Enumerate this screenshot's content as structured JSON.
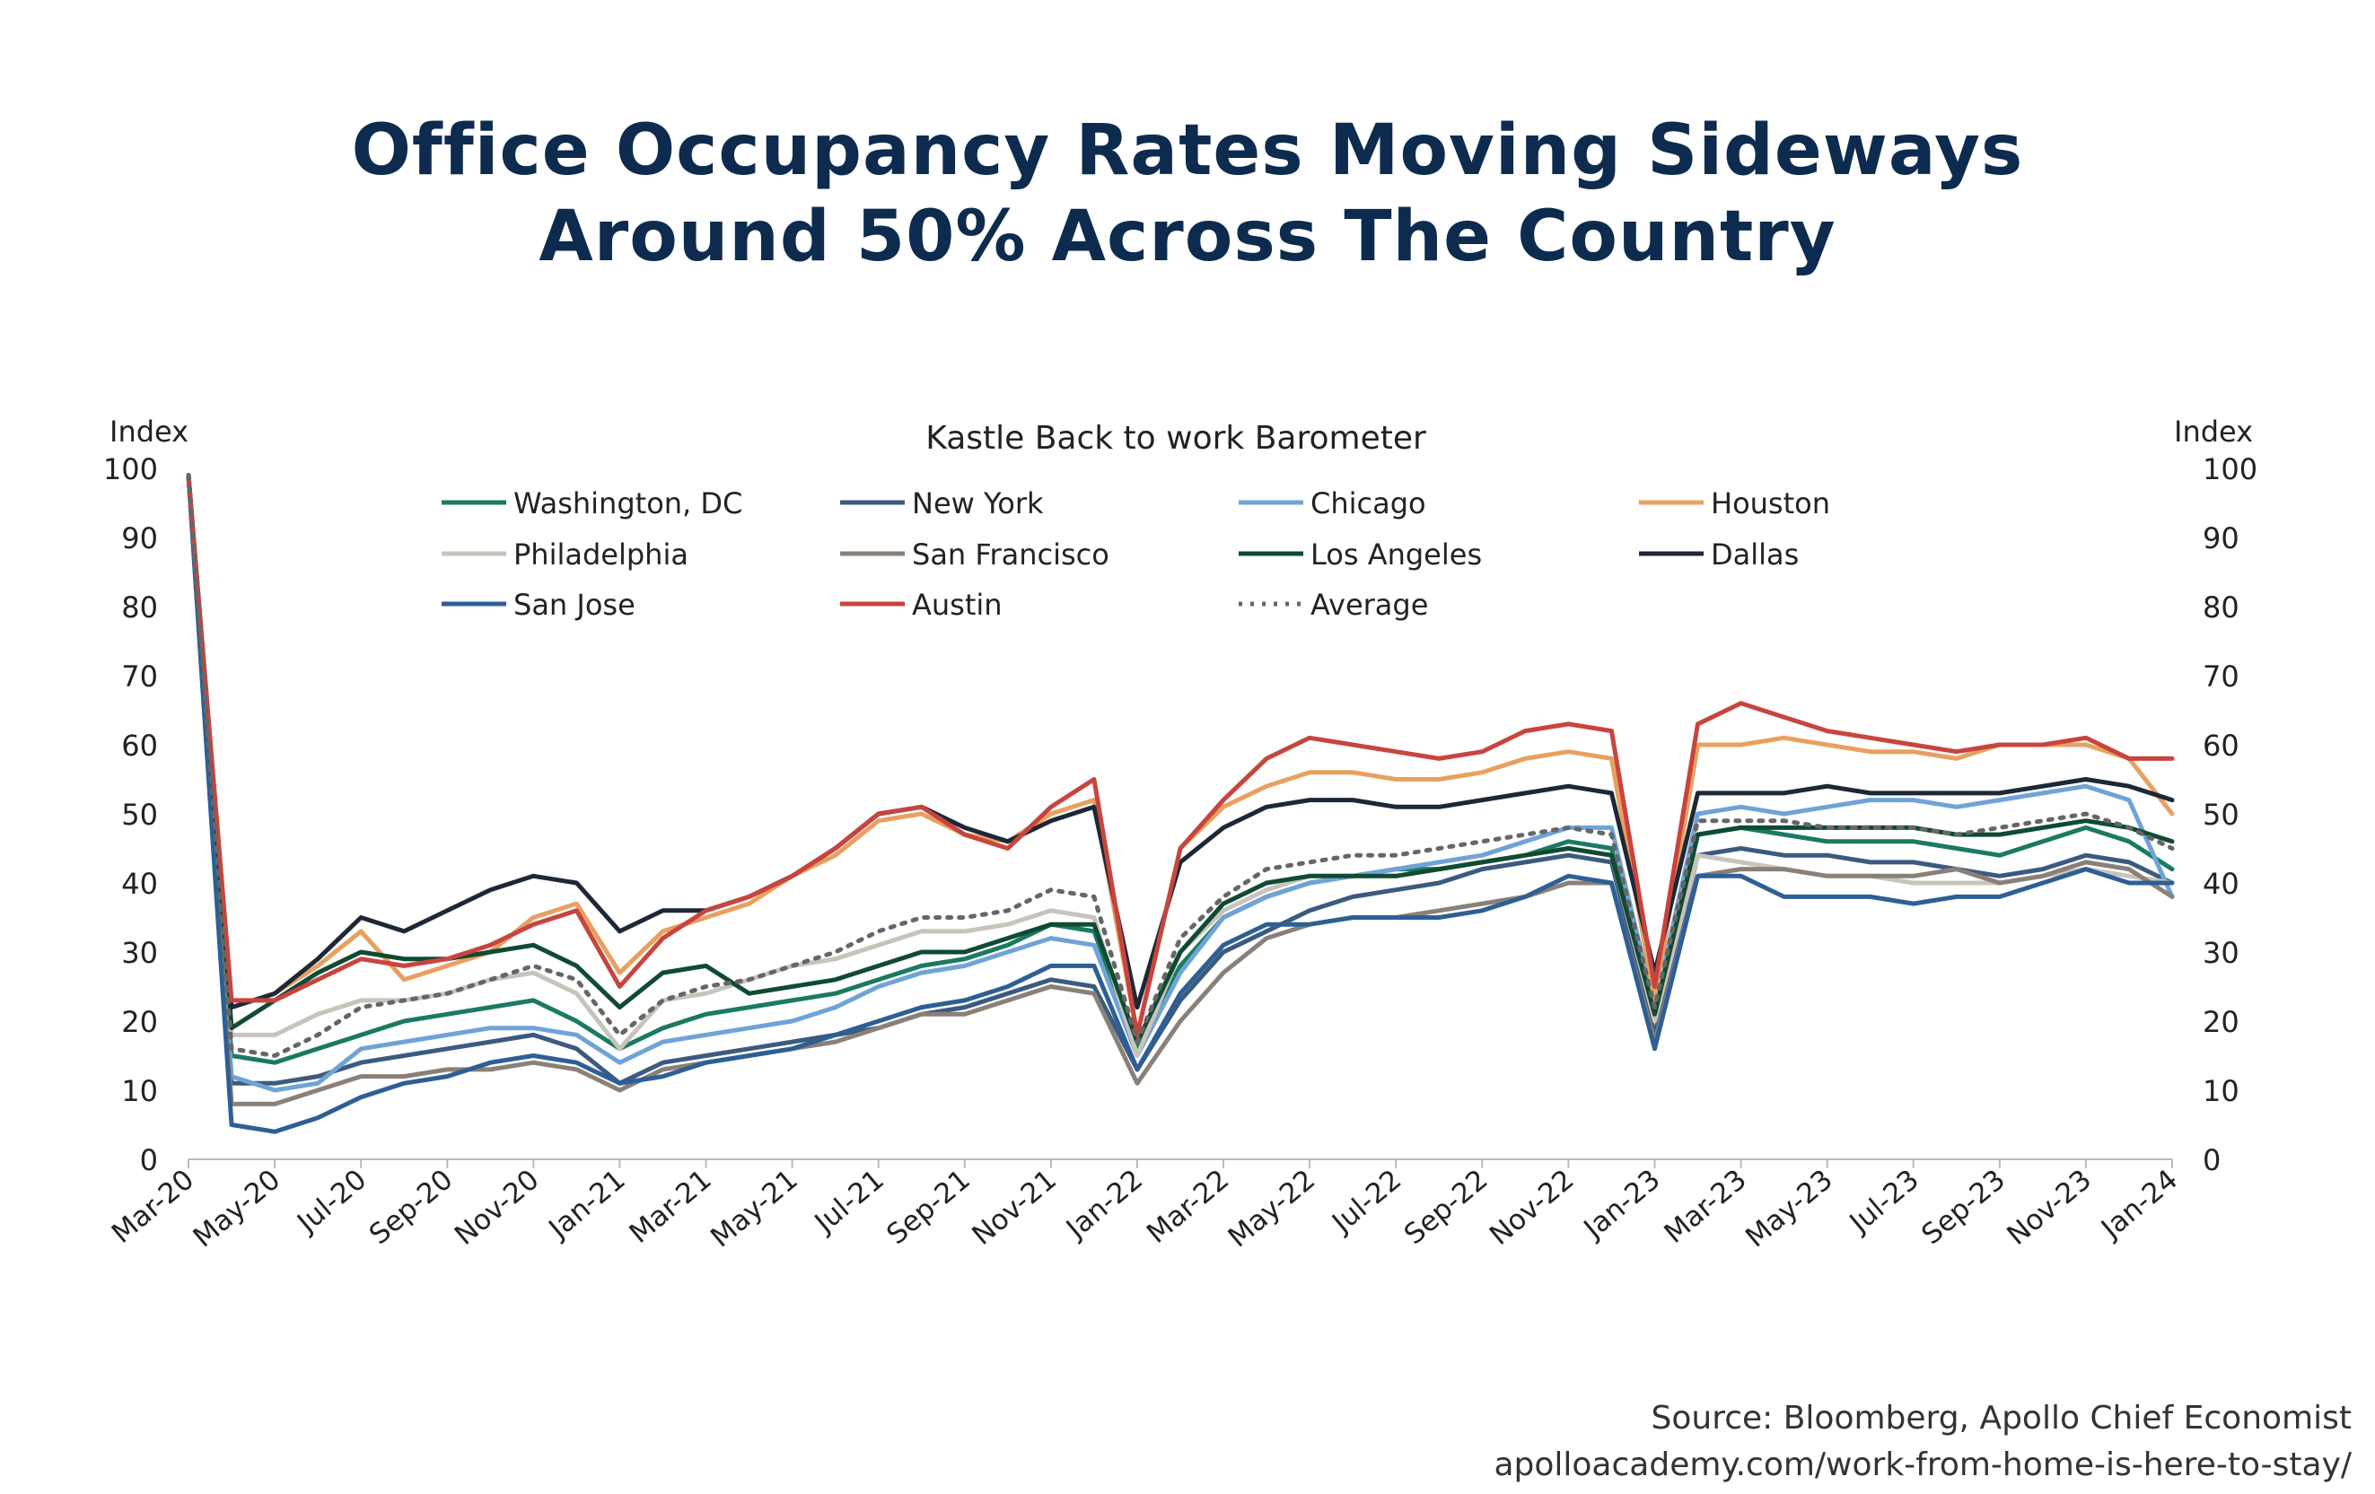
{
  "title": {
    "line1": "Office Occupancy Rates Moving Sideways",
    "line2": "Around 50% Across The Country"
  },
  "source": {
    "line1": "Source: Bloomberg, Apollo Chief Economist",
    "line2": "apolloacademy.com/work-from-home-is-here-to-stay/"
  },
  "chart_data": {
    "type": "line",
    "title": "Kastle Back to work Barometer",
    "ylabel_left": "Index",
    "ylabel_right": "Index",
    "ylim": [
      0,
      100
    ],
    "yticks": [
      0,
      10,
      20,
      30,
      40,
      50,
      60,
      70,
      80,
      90,
      100
    ],
    "xlim": [
      "2020-03",
      "2024-01"
    ],
    "xticks": [
      "Mar-20",
      "May-20",
      "Jul-20",
      "Sep-20",
      "Nov-20",
      "Jan-21",
      "Mar-21",
      "May-21",
      "Jul-21",
      "Sep-21",
      "Nov-21",
      "Jan-22",
      "Mar-22",
      "May-22",
      "Jul-22",
      "Sep-22",
      "Nov-22",
      "Jan-23",
      "Mar-23",
      "May-23",
      "Jul-23",
      "Sep-23",
      "Nov-23",
      "Jan-24"
    ],
    "legend_position": "top",
    "grid": false,
    "x": [
      "2020-03",
      "2020-04",
      "2020-05",
      "2020-06",
      "2020-07",
      "2020-08",
      "2020-09",
      "2020-10",
      "2020-11",
      "2020-12",
      "2021-01",
      "2021-02",
      "2021-03",
      "2021-04",
      "2021-05",
      "2021-06",
      "2021-07",
      "2021-08",
      "2021-09",
      "2021-10",
      "2021-11",
      "2021-12",
      "2022-01",
      "2022-02",
      "2022-03",
      "2022-04",
      "2022-05",
      "2022-06",
      "2022-07",
      "2022-08",
      "2022-09",
      "2022-10",
      "2022-11",
      "2022-12",
      "2023-01",
      "2023-02",
      "2023-03",
      "2023-04",
      "2023-05",
      "2023-06",
      "2023-07",
      "2023-08",
      "2023-09",
      "2023-10",
      "2023-11",
      "2023-12",
      "2024-01"
    ],
    "series": [
      {
        "name": "Washington, DC",
        "color": "#1a7a62",
        "dash": "solid",
        "values": [
          99,
          15,
          14,
          16,
          18,
          20,
          21,
          22,
          23,
          20,
          16,
          19,
          21,
          22,
          23,
          24,
          26,
          28,
          29,
          31,
          34,
          33,
          16,
          28,
          35,
          38,
          40,
          41,
          42,
          42,
          43,
          44,
          46,
          45,
          20,
          47,
          48,
          47,
          46,
          46,
          46,
          45,
          44,
          46,
          48,
          46,
          42
        ]
      },
      {
        "name": "New York",
        "color": "#3b5a80",
        "dash": "solid",
        "values": [
          99,
          11,
          11,
          12,
          14,
          15,
          16,
          17,
          18,
          16,
          11,
          14,
          15,
          16,
          17,
          18,
          19,
          21,
          22,
          24,
          26,
          25,
          13,
          23,
          30,
          33,
          36,
          38,
          39,
          40,
          42,
          43,
          44,
          43,
          18,
          44,
          45,
          44,
          44,
          43,
          43,
          42,
          41,
          42,
          44,
          43,
          40
        ]
      },
      {
        "name": "Chicago",
        "color": "#6fa3d8",
        "dash": "solid",
        "values": [
          99,
          12,
          10,
          11,
          16,
          17,
          18,
          19,
          19,
          18,
          14,
          17,
          18,
          19,
          20,
          22,
          25,
          27,
          28,
          30,
          32,
          31,
          15,
          27,
          35,
          38,
          40,
          41,
          42,
          43,
          44,
          46,
          48,
          48,
          22,
          50,
          51,
          50,
          51,
          52,
          52,
          51,
          52,
          53,
          54,
          52,
          38
        ]
      },
      {
        "name": "Houston",
        "color": "#e8a060",
        "dash": "solid",
        "values": [
          99,
          22,
          24,
          28,
          33,
          26,
          28,
          30,
          35,
          37,
          27,
          33,
          35,
          37,
          41,
          44,
          49,
          50,
          47,
          46,
          50,
          52,
          18,
          45,
          51,
          54,
          56,
          56,
          55,
          55,
          56,
          58,
          59,
          58,
          23,
          60,
          60,
          61,
          60,
          59,
          59,
          58,
          60,
          60,
          60,
          58,
          50
        ]
      },
      {
        "name": "Philadelphia",
        "color": "#c8c4bc",
        "dash": "solid",
        "values": [
          99,
          18,
          18,
          21,
          23,
          23,
          24,
          26,
          27,
          24,
          16,
          23,
          24,
          26,
          28,
          29,
          31,
          33,
          33,
          34,
          36,
          35,
          15,
          30,
          36,
          39,
          41,
          41,
          41,
          42,
          43,
          44,
          45,
          44,
          20,
          44,
          43,
          42,
          41,
          41,
          40,
          40,
          40,
          41,
          42,
          41,
          40
        ]
      },
      {
        "name": "San Francisco",
        "color": "#8a8078",
        "dash": "solid",
        "values": [
          99,
          8,
          8,
          10,
          12,
          12,
          13,
          13,
          14,
          13,
          10,
          13,
          14,
          15,
          16,
          17,
          19,
          21,
          21,
          23,
          25,
          24,
          11,
          20,
          27,
          32,
          34,
          35,
          35,
          36,
          37,
          38,
          40,
          40,
          17,
          41,
          42,
          42,
          41,
          41,
          41,
          42,
          40,
          41,
          43,
          42,
          38
        ]
      },
      {
        "name": "Los Angeles",
        "color": "#0f4a33",
        "dash": "solid",
        "values": [
          99,
          19,
          23,
          27,
          30,
          29,
          29,
          30,
          31,
          28,
          22,
          27,
          28,
          24,
          25,
          26,
          28,
          30,
          30,
          32,
          34,
          34,
          17,
          30,
          37,
          40,
          41,
          41,
          41,
          42,
          43,
          44,
          45,
          44,
          21,
          47,
          48,
          48,
          48,
          48,
          48,
          47,
          47,
          48,
          49,
          48,
          46
        ]
      },
      {
        "name": "Dallas",
        "color": "#1c2837",
        "dash": "solid",
        "values": [
          99,
          22,
          24,
          29,
          35,
          33,
          36,
          39,
          41,
          40,
          33,
          36,
          36,
          38,
          41,
          45,
          50,
          51,
          48,
          46,
          49,
          51,
          22,
          43,
          48,
          51,
          52,
          52,
          51,
          51,
          52,
          53,
          54,
          53,
          27,
          53,
          53,
          53,
          54,
          53,
          53,
          53,
          53,
          54,
          55,
          54,
          52
        ]
      },
      {
        "name": "San Jose",
        "color": "#2d5f95",
        "dash": "solid",
        "values": [
          99,
          5,
          4,
          6,
          9,
          11,
          12,
          14,
          15,
          14,
          11,
          12,
          14,
          15,
          16,
          18,
          20,
          22,
          23,
          25,
          28,
          28,
          13,
          24,
          31,
          34,
          34,
          35,
          35,
          35,
          36,
          38,
          41,
          40,
          16,
          41,
          41,
          38,
          38,
          38,
          37,
          38,
          38,
          40,
          42,
          40,
          40
        ]
      },
      {
        "name": "Austin",
        "color": "#c8443e",
        "dash": "solid",
        "values": [
          99,
          23,
          23,
          26,
          29,
          28,
          29,
          31,
          34,
          36,
          25,
          32,
          36,
          38,
          41,
          45,
          50,
          51,
          47,
          45,
          51,
          55,
          18,
          45,
          52,
          58,
          61,
          60,
          59,
          58,
          59,
          62,
          63,
          62,
          25,
          63,
          66,
          64,
          62,
          61,
          60,
          59,
          60,
          60,
          61,
          58,
          58
        ]
      },
      {
        "name": "Average",
        "color": "#666666",
        "dash": "dotted",
        "values": [
          99,
          16,
          15,
          18,
          22,
          23,
          24,
          26,
          28,
          26,
          18,
          23,
          25,
          26,
          28,
          30,
          33,
          35,
          35,
          36,
          39,
          38,
          17,
          32,
          38,
          42,
          43,
          44,
          44,
          45,
          46,
          47,
          48,
          47,
          22,
          49,
          49,
          49,
          48,
          48,
          48,
          47,
          48,
          49,
          50,
          48,
          45
        ]
      }
    ]
  }
}
